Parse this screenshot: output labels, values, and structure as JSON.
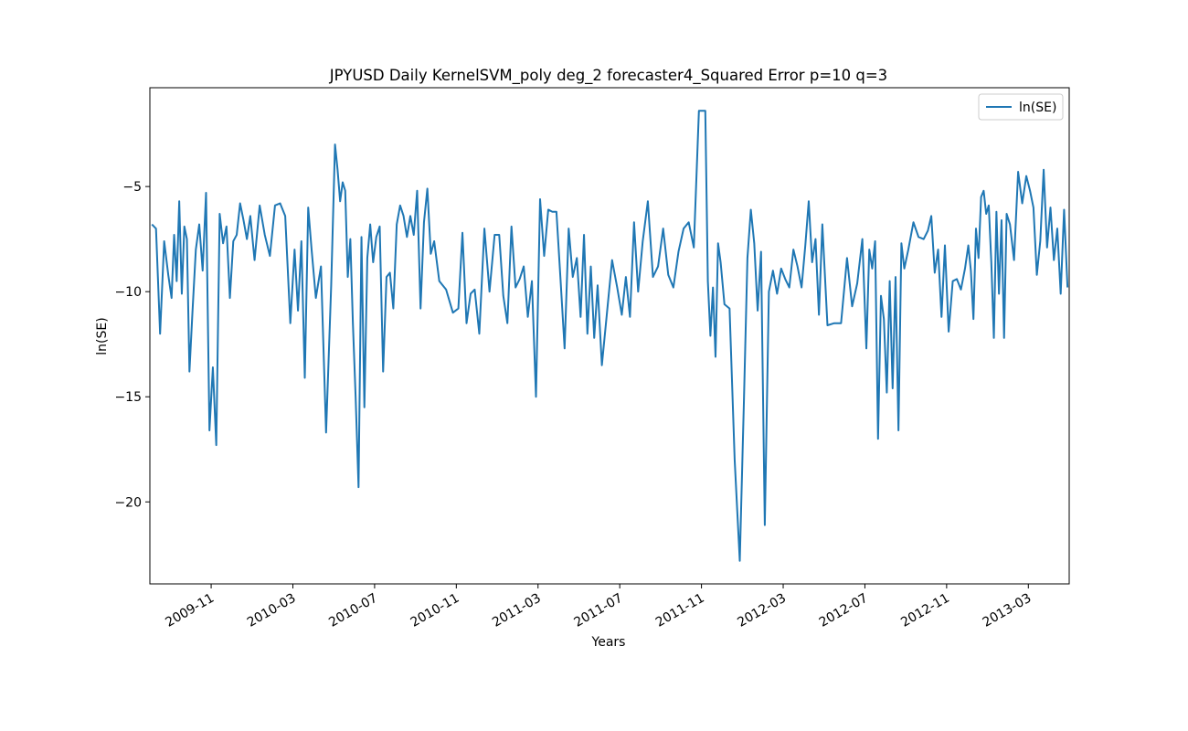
{
  "chart_data": {
    "type": "line",
    "title": "JPYUSD Daily KernelSVM_poly deg_2 forecaster4_Squared Error p=10 q=3",
    "xlabel": "Years",
    "ylabel": "ln(SE)",
    "legend": "upper right",
    "x": [
      "2009-08",
      "2009-08",
      "2009-08",
      "2009-08",
      "2009-08",
      "2009-09",
      "2009-09",
      "2009-09",
      "2009-09",
      "2009-09",
      "2009-09",
      "2009-09",
      "2009-09",
      "2009-10",
      "2009-10",
      "2009-10",
      "2009-10",
      "2009-10",
      "2009-10",
      "2009-11",
      "2009-11",
      "2009-11",
      "2009-11",
      "2009-11",
      "2009-11",
      "2009-12",
      "2009-12",
      "2009-12",
      "2009-12",
      "2009-12",
      "2009-12",
      "2010-01",
      "2010-01",
      "2010-01",
      "2010-01",
      "2010-02",
      "2010-02",
      "2010-02",
      "2010-02",
      "2010-03",
      "2010-03",
      "2010-03",
      "2010-03",
      "2010-03",
      "2010-03",
      "2010-04",
      "2010-04",
      "2010-04",
      "2010-04",
      "2010-05",
      "2010-05",
      "2010-05",
      "2010-05",
      "2010-05",
      "2010-05",
      "2010-05",
      "2010-05",
      "2010-06",
      "2010-06",
      "2010-06",
      "2010-06",
      "2010-06",
      "2010-06",
      "2010-06",
      "2010-07",
      "2010-07",
      "2010-07",
      "2010-07",
      "2010-07",
      "2010-07",
      "2010-08",
      "2010-08",
      "2010-08",
      "2010-08",
      "2010-08",
      "2010-08",
      "2010-09",
      "2010-09",
      "2010-09",
      "2010-09",
      "2010-09",
      "2010-09",
      "2010-10",
      "2010-10",
      "2010-10",
      "2010-11",
      "2010-11",
      "2010-11",
      "2010-11",
      "2010-11",
      "2010-12",
      "2010-12",
      "2010-12",
      "2010-12",
      "2011-01",
      "2011-01",
      "2011-01",
      "2011-01",
      "2011-01",
      "2011-02",
      "2011-02",
      "2011-02",
      "2011-02",
      "2011-02",
      "2011-03",
      "2011-03",
      "2011-03",
      "2011-03",
      "2011-03",
      "2011-04",
      "2011-04",
      "2011-04",
      "2011-04",
      "2011-04",
      "2011-05",
      "2011-05",
      "2011-05",
      "2011-05",
      "2011-05",
      "2011-05",
      "2011-06",
      "2011-06",
      "2011-06",
      "2011-06",
      "2011-07",
      "2011-07",
      "2011-07",
      "2011-07",
      "2011-07",
      "2011-08",
      "2011-08",
      "2011-08",
      "2011-08",
      "2011-09",
      "2011-09",
      "2011-09",
      "2011-09",
      "2011-10",
      "2011-10",
      "2011-10",
      "2011-10",
      "2011-11",
      "2011-11",
      "2011-11",
      "2011-11",
      "2011-11",
      "2011-11",
      "2011-11",
      "2011-11",
      "2011-12",
      "2011-12",
      "2011-12",
      "2011-12",
      "2012-01",
      "2012-01",
      "2012-01",
      "2012-01",
      "2012-01",
      "2012-01",
      "2012-02",
      "2012-02",
      "2012-02",
      "2012-02",
      "2012-02",
      "2012-03",
      "2012-03",
      "2012-03",
      "2012-03",
      "2012-03",
      "2012-04",
      "2012-04",
      "2012-04",
      "2012-04",
      "2012-04",
      "2012-04",
      "2012-05",
      "2012-05",
      "2012-05",
      "2012-06",
      "2012-06",
      "2012-06",
      "2012-06",
      "2012-07",
      "2012-07",
      "2012-07",
      "2012-07",
      "2012-07",
      "2012-07",
      "2012-07",
      "2012-08",
      "2012-08",
      "2012-08",
      "2012-08",
      "2012-08",
      "2012-08",
      "2012-08",
      "2012-09",
      "2012-09",
      "2012-09",
      "2012-09",
      "2012-10",
      "2012-10",
      "2012-10",
      "2012-10",
      "2012-10",
      "2012-10",
      "2012-11",
      "2012-11",
      "2012-11",
      "2012-11",
      "2012-11",
      "2012-12",
      "2012-12",
      "2012-12",
      "2012-12",
      "2012-12",
      "2012-12",
      "2012-12",
      "2012-12",
      "2013-01",
      "2013-01",
      "2013-01",
      "2013-01",
      "2013-01",
      "2013-01",
      "2013-01",
      "2013-01",
      "2013-02",
      "2013-02",
      "2013-02",
      "2013-02",
      "2013-02",
      "2013-03",
      "2013-03",
      "2013-03",
      "2013-03",
      "2013-03",
      "2013-03",
      "2013-04",
      "2013-04",
      "2013-04",
      "2013-04",
      "2013-04",
      "2013-04"
    ],
    "series": [
      {
        "name": "ln(SE)",
        "color": "#1f77b4",
        "values": [
          -6.8,
          -7.0,
          -12.0,
          -7.6,
          -9.2,
          -10.3,
          -7.3,
          -9.5,
          -5.7,
          -10.1,
          -6.9,
          -7.5,
          -13.8,
          -11.0,
          -8.0,
          -6.8,
          -9.0,
          -5.3,
          -16.6,
          -13.6,
          -17.3,
          -6.3,
          -7.7,
          -6.9,
          -10.3,
          -7.6,
          -7.3,
          -5.8,
          -6.6,
          -7.5,
          -6.4,
          -8.5,
          -5.9,
          -7.3,
          -8.3,
          -5.9,
          -5.8,
          -6.4,
          -11.5,
          -8.0,
          -10.9,
          -7.6,
          -14.1,
          -6.0,
          -8.0,
          -10.3,
          -8.8,
          -16.7,
          -9.7,
          -3.0,
          -4.2,
          -5.7,
          -4.8,
          -5.2,
          -9.3,
          -7.5,
          -11.5,
          -15.0,
          -19.3,
          -7.4,
          -15.5,
          -8.4,
          -6.8,
          -8.6,
          -7.4,
          -6.9,
          -13.8,
          -9.3,
          -9.1,
          -10.8,
          -6.8,
          -5.9,
          -6.4,
          -7.4,
          -6.4,
          -7.3,
          -5.2,
          -10.8,
          -6.7,
          -5.1,
          -8.2,
          -7.6,
          -9.5,
          -9.9,
          -11.0,
          -10.8,
          -7.2,
          -11.5,
          -10.1,
          -9.9,
          -12.0,
          -7.0,
          -10.0,
          -7.3,
          -7.3,
          -10.2,
          -11.5,
          -6.9,
          -9.8,
          -9.4,
          -8.8,
          -11.2,
          -9.5,
          -15.0,
          -5.6,
          -8.3,
          -6.1,
          -6.2,
          -6.2,
          -9.4,
          -12.7,
          -7.0,
          -9.3,
          -8.4,
          -11.2,
          -7.3,
          -12.0,
          -8.8,
          -12.2,
          -9.7,
          -13.5,
          -11.0,
          -8.5,
          -9.8,
          -11.1,
          -9.3,
          -11.2,
          -6.7,
          -10.0,
          -7.6,
          -5.7,
          -9.3,
          -8.8,
          -7.0,
          -9.2,
          -9.8,
          -8.1,
          -7.0,
          -6.7,
          -7.9,
          -1.4,
          -1.4,
          -1.4,
          -9.5,
          -12.1,
          -9.8,
          -13.1,
          -7.7,
          -8.6,
          -10.6,
          -10.8,
          -18.0,
          -22.8,
          -15.0,
          -8.4,
          -6.1,
          -7.7,
          -10.9,
          -8.1,
          -21.1,
          -10.0,
          -9.0,
          -10.1,
          -8.9,
          -9.4,
          -9.8,
          -8.0,
          -8.8,
          -9.8,
          -7.8,
          -5.7,
          -8.6,
          -7.5,
          -11.1,
          -6.8,
          -11.6,
          -11.5,
          -11.5,
          -8.4,
          -10.7,
          -9.6,
          -7.5,
          -12.7,
          -8.0,
          -8.9,
          -7.6,
          -17.0,
          -10.2,
          -11.3,
          -14.8,
          -9.5,
          -14.6,
          -9.3,
          -16.6,
          -7.7,
          -8.9,
          -8.0,
          -6.7,
          -7.4,
          -7.5,
          -7.1,
          -6.4,
          -9.1,
          -8.0,
          -11.2,
          -7.8,
          -11.9,
          -9.5,
          -9.4,
          -9.9,
          -8.9,
          -7.8,
          -9.0,
          -11.3,
          -7.0,
          -8.4,
          -5.5,
          -5.2,
          -6.3,
          -5.9,
          -8.6,
          -12.2,
          -6.2,
          -10.1,
          -6.6,
          -12.2,
          -6.3,
          -6.8,
          -8.5,
          -4.3,
          -5.8,
          -4.5,
          -5.2,
          -6.0,
          -9.2,
          -7.6,
          -4.2,
          -7.9,
          -6.0,
          -8.5,
          -7.0,
          -10.1,
          -6.1,
          -9.8
        ]
      }
    ],
    "xlim": [
      "2009-08",
      "2013-05"
    ],
    "xticks": [
      "2009-11",
      "2010-03",
      "2010-07",
      "2010-11",
      "2011-03",
      "2011-07",
      "2011-11",
      "2012-03",
      "2012-07",
      "2012-11",
      "2013-03"
    ],
    "ylim": [
      -23.9,
      -0.3
    ],
    "yticks": [
      {
        "value": -20,
        "label": "−20"
      },
      {
        "value": -15,
        "label": "−15"
      },
      {
        "value": -10,
        "label": "−10"
      },
      {
        "value": -5,
        "label": "−5"
      }
    ]
  }
}
